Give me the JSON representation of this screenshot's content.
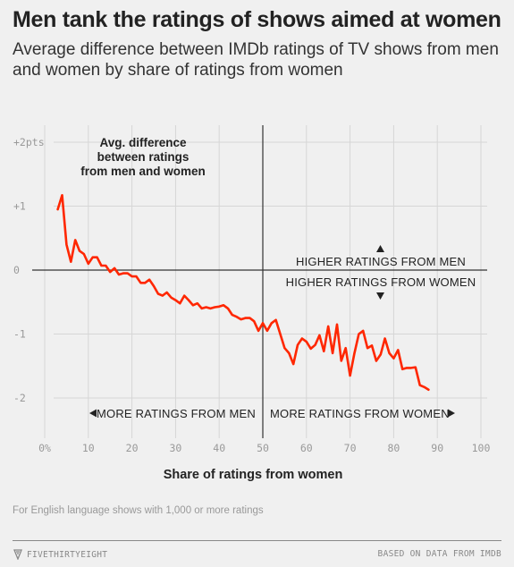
{
  "header": {
    "title": "Men tank the ratings of shows aimed at women",
    "subtitle": "Average difference between IMDb ratings of TV shows from men and women by share of ratings from women"
  },
  "chart_data": {
    "type": "line",
    "xlabel": "Share of ratings from women",
    "ylabel": "",
    "xlim": [
      0,
      100
    ],
    "ylim": [
      -2,
      2
    ],
    "x_ticks": [
      "0%",
      "10",
      "20",
      "30",
      "40",
      "50",
      "60",
      "70",
      "80",
      "90",
      "100"
    ],
    "y_ticks": [
      "+2pts",
      "+1",
      "0",
      "-1",
      "-2"
    ],
    "annotation": [
      "Avg. difference",
      "between ratings",
      "from men and women"
    ],
    "region_labels": {
      "above": "HIGHER RATINGS FROM MEN",
      "below": "HIGHER RATINGS FROM WOMEN",
      "left": "MORE RATINGS FROM MEN",
      "right": "MORE RATINGS FROM WOMEN"
    },
    "grid": true,
    "color": "#ff2700",
    "series": [
      {
        "x": [
          3,
          4,
          5,
          6,
          7,
          8,
          9,
          10,
          11,
          12,
          13,
          14,
          15,
          16,
          17,
          18,
          19,
          20,
          21,
          22,
          23,
          24,
          25,
          26,
          27,
          28,
          29,
          30,
          31,
          32,
          33,
          34,
          35,
          36,
          37,
          38,
          39,
          40,
          41,
          42,
          43,
          44,
          45,
          46,
          47,
          48,
          49,
          50,
          51,
          52,
          53,
          54,
          55,
          56,
          57,
          58,
          59,
          60,
          61,
          62,
          63,
          64,
          65,
          66,
          67,
          68,
          69,
          70,
          71,
          72,
          73,
          74,
          75,
          76,
          77,
          78,
          79,
          80,
          81,
          82,
          83,
          84,
          85,
          86,
          87,
          88
        ],
        "y": [
          0.95,
          1.17,
          0.4,
          0.13,
          0.47,
          0.3,
          0.25,
          0.1,
          0.2,
          0.2,
          0.07,
          0.07,
          -0.03,
          0.03,
          -0.07,
          -0.05,
          -0.05,
          -0.1,
          -0.1,
          -0.2,
          -0.2,
          -0.15,
          -0.25,
          -0.37,
          -0.4,
          -0.35,
          -0.43,
          -0.47,
          -0.52,
          -0.4,
          -0.47,
          -0.55,
          -0.52,
          -0.6,
          -0.58,
          -0.6,
          -0.58,
          -0.57,
          -0.55,
          -0.6,
          -0.7,
          -0.73,
          -0.77,
          -0.75,
          -0.75,
          -0.8,
          -0.95,
          -0.83,
          -0.95,
          -0.83,
          -0.78,
          -1.0,
          -1.22,
          -1.3,
          -1.47,
          -1.17,
          -1.07,
          -1.12,
          -1.23,
          -1.17,
          -1.02,
          -1.27,
          -0.88,
          -1.3,
          -0.85,
          -1.42,
          -1.22,
          -1.65,
          -1.3,
          -1.0,
          -0.95,
          -1.22,
          -1.18,
          -1.42,
          -1.32,
          -1.07,
          -1.3,
          -1.38,
          -1.25,
          -1.55,
          -1.53,
          -1.53,
          -1.52,
          -1.8,
          -1.83,
          -1.87
        ]
      }
    ]
  },
  "footer": {
    "note": "For English language shows with 1,000 or more ratings",
    "brand": "FIVETHIRTYEIGHT",
    "source": "BASED ON DATA FROM IMDB"
  }
}
